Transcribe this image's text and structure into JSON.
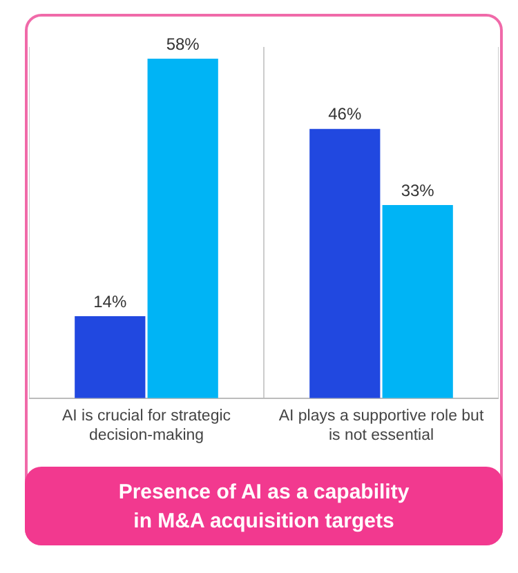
{
  "chart_data": {
    "type": "bar",
    "title": "Presence of AI as a capability\nin M&A acquisition targets",
    "categories": [
      "AI is crucial for strategic decision-making",
      "AI plays a supportive role but is not essential"
    ],
    "series": [
      {
        "color": "#2148e0",
        "values": [
          14,
          46
        ],
        "value_labels": [
          "14%",
          "46%"
        ]
      },
      {
        "color": "#00b4f5",
        "values": [
          58,
          33
        ],
        "value_labels": [
          "58%",
          "33%"
        ]
      }
    ],
    "grid": "x",
    "legend": false
  }
}
